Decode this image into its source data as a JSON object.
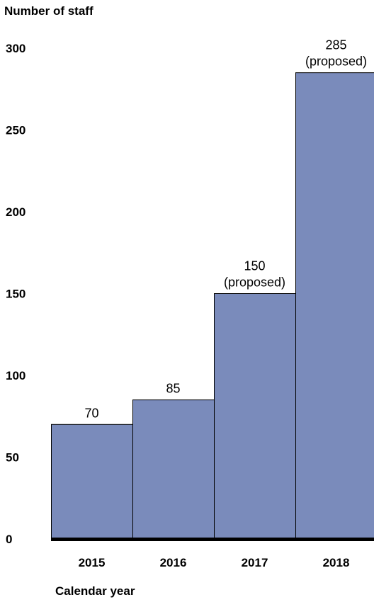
{
  "chart_data": {
    "type": "bar",
    "xlabel": "Calendar year",
    "ylabel": "Number of staff",
    "categories": [
      "2015",
      "2016",
      "2017",
      "2018"
    ],
    "values": [
      70,
      85,
      150,
      285
    ],
    "data_labels": [
      [
        "70"
      ],
      [
        "85"
      ],
      [
        "150",
        "(proposed)"
      ],
      [
        "285",
        "(proposed)"
      ]
    ],
    "ylim": [
      0,
      300
    ],
    "yticks": [
      "0",
      "50",
      "100",
      "150",
      "200",
      "250",
      "300"
    ],
    "grid": false,
    "bar_color": "#7a8bbb",
    "bar_edge_color": "#000000"
  }
}
